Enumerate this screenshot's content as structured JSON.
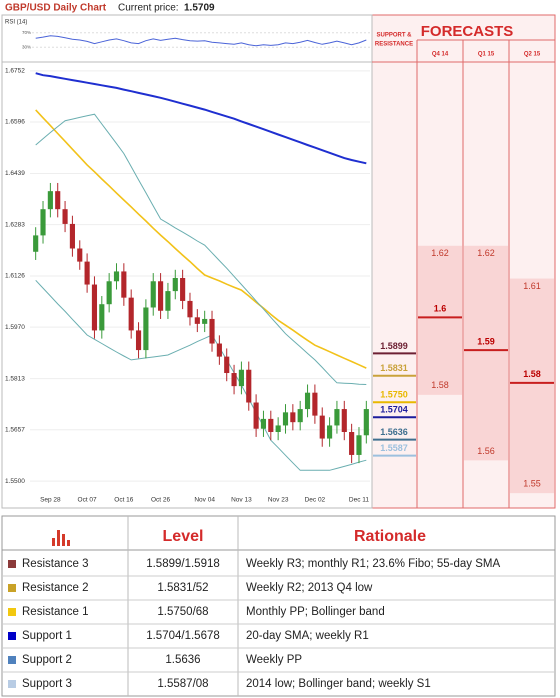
{
  "chart_data": {
    "type": "candlestick",
    "title": "GBP/USD Daily Chart",
    "price_label": "Current price:",
    "current_price": 1.5709,
    "categories": [
      null,
      null,
      "Sep 28",
      null,
      null,
      null,
      null,
      "Oct 07",
      null,
      null,
      null,
      null,
      "Oct 16",
      null,
      null,
      null,
      null,
      "Oct 26",
      null,
      null,
      null,
      null,
      null,
      "Nov 04",
      null,
      null,
      null,
      null,
      "Nov 13",
      null,
      null,
      null,
      null,
      "Nov 23",
      null,
      null,
      null,
      null,
      "Dec 02",
      null,
      null,
      null,
      null,
      null,
      "Dec 11",
      null
    ],
    "open": [
      1.62,
      1.625,
      1.633,
      1.6385,
      1.633,
      1.6285,
      1.621,
      1.617,
      1.61,
      1.596,
      1.604,
      1.611,
      1.614,
      1.606,
      1.596,
      1.59,
      1.603,
      1.611,
      1.602,
      1.608,
      1.612,
      1.605,
      1.6,
      1.598,
      1.5995,
      1.592,
      1.588,
      1.583,
      1.579,
      1.584,
      1.574,
      1.566,
      1.569,
      1.565,
      1.567,
      1.571,
      1.568,
      1.572,
      1.577,
      1.57,
      1.563,
      1.567,
      1.572,
      1.565,
      1.558,
      1.564
    ],
    "high": [
      1.6275,
      1.6355,
      1.641,
      1.641,
      1.6355,
      1.631,
      1.6235,
      1.6195,
      1.6125,
      1.6065,
      1.6135,
      1.6165,
      1.6165,
      1.6085,
      1.5985,
      1.6055,
      1.6135,
      1.6135,
      1.6105,
      1.6145,
      1.6145,
      1.6075,
      1.6025,
      1.602,
      1.602,
      1.5945,
      1.5905,
      1.5855,
      1.5865,
      1.5865,
      1.5765,
      1.5715,
      1.5715,
      1.5695,
      1.5735,
      1.5735,
      1.5745,
      1.5795,
      1.5795,
      1.5725,
      1.5695,
      1.5745,
      1.5745,
      1.5675,
      1.5665,
      1.5745
    ],
    "low": [
      1.6175,
      1.6225,
      1.6305,
      1.6305,
      1.626,
      1.6185,
      1.6145,
      1.6075,
      1.5935,
      1.5935,
      1.6015,
      1.6085,
      1.6035,
      1.5935,
      1.5875,
      1.5875,
      1.6005,
      1.5995,
      1.5995,
      1.6055,
      1.6025,
      1.5975,
      1.5955,
      1.5955,
      1.5895,
      1.5855,
      1.5805,
      1.5765,
      1.5765,
      1.5715,
      1.5635,
      1.5635,
      1.5625,
      1.5625,
      1.5645,
      1.5655,
      1.5655,
      1.5695,
      1.5675,
      1.5605,
      1.5605,
      1.5645,
      1.5625,
      1.5555,
      1.5555,
      1.5615
    ],
    "close": [
      1.625,
      1.633,
      1.6385,
      1.633,
      1.6285,
      1.621,
      1.617,
      1.61,
      1.596,
      1.604,
      1.611,
      1.614,
      1.606,
      1.596,
      1.59,
      1.603,
      1.611,
      1.602,
      1.608,
      1.612,
      1.605,
      1.6,
      1.598,
      1.5995,
      1.592,
      1.588,
      1.583,
      1.579,
      1.584,
      1.574,
      1.566,
      1.569,
      1.565,
      1.567,
      1.571,
      1.568,
      1.572,
      1.577,
      1.57,
      1.563,
      1.567,
      1.572,
      1.565,
      1.558,
      1.564,
      1.572
    ],
    "up_color": "#3a9a3a",
    "down_color": "#b3262b",
    "ylim": [
      1.5473,
      1.677
    ],
    "yticks": [
      1.6752,
      1.6596,
      1.6439,
      1.6283,
      1.6126,
      {
        "value": 1.597,
        "label": "1.5970"
      },
      1.5813,
      1.5657,
      {
        "value": 1.55,
        "label": "1.5500"
      }
    ],
    "grid": true,
    "series": [
      {
        "color": "#1f2fd0",
        "values": [
          1.6745,
          1.6739,
          1.6736,
          1.6732,
          1.6728,
          1.6724,
          1.672,
          1.6716,
          1.6712,
          1.6708,
          1.6704,
          1.67,
          1.6695,
          1.669,
          1.6685,
          1.668,
          1.6675,
          1.667,
          1.6664,
          1.6658,
          1.6652,
          1.6646,
          1.664,
          1.6634,
          1.6627,
          1.662,
          1.6613,
          1.6606,
          1.6598,
          1.659,
          1.6582,
          1.6574,
          1.6566,
          1.6558,
          1.655,
          1.6542,
          1.6534,
          1.6526,
          1.6518,
          1.651,
          1.6502,
          1.6494,
          1.6486,
          1.648,
          1.6475,
          1.647
        ]
      },
      {
        "color": "#f2c21a",
        "values": [
          1.6633,
          1.6609,
          1.6585,
          1.6561,
          1.6537,
          1.6513,
          1.6489,
          1.6465,
          1.6444,
          1.6422,
          1.6401,
          1.6379,
          1.6358,
          1.6337,
          1.6315,
          1.6294,
          1.6272,
          1.6251,
          1.6231,
          1.621,
          1.619,
          1.617,
          1.6149,
          1.6129,
          1.612,
          1.6111,
          1.6101,
          1.6092,
          1.6083,
          1.6065,
          1.6046,
          1.6028,
          1.6009,
          1.5991,
          1.5976,
          1.5961,
          1.5945,
          1.593,
          1.5915,
          1.5905,
          1.5895,
          1.5885,
          1.5875,
          1.5865,
          1.5855,
          1.5845
        ]
      },
      {
        "color": "#6aaeb0",
        "values": [
          1.6526,
          1.6545,
          1.6564,
          1.6582,
          1.66,
          1.6605,
          1.661,
          1.6615,
          1.662,
          1.659,
          1.656,
          1.653,
          1.65,
          1.646,
          1.642,
          1.638,
          1.634,
          1.63,
          1.6287,
          1.6273,
          1.626,
          1.6247,
          1.6233,
          1.622,
          1.6197,
          1.6173,
          1.615,
          1.6125,
          1.61,
          1.6075,
          1.605,
          1.6025,
          1.6,
          1.5975,
          1.595,
          1.593,
          1.591,
          1.589,
          1.587,
          1.5847,
          1.5823,
          1.58,
          1.5799,
          1.5798,
          1.5796,
          1.5795
        ]
      },
      {
        "color": "#6aaeb0",
        "values": [
          1.6113,
          1.6089,
          1.6065,
          1.6041,
          1.6018,
          1.5994,
          1.597,
          1.5946,
          1.5933,
          1.592,
          1.5907,
          1.5894,
          1.5882,
          1.587,
          1.5873,
          1.5876,
          1.5879,
          1.5882,
          1.5885,
          1.5895,
          1.5905,
          1.5915,
          1.5926,
          1.5936,
          1.5946,
          1.5908,
          1.587,
          1.5831,
          1.5793,
          1.5751,
          1.5709,
          1.5667,
          1.5625,
          1.5602,
          1.5579,
          1.5556,
          1.5533,
          1.5533,
          1.5533,
          1.5533,
          1.5533,
          1.5539,
          1.5545,
          1.5551,
          1.5558,
          1.5564
        ]
      }
    ],
    "rsi": {
      "title": "RSI (14)",
      "color": "#4a63d8",
      "ylim": [
        0,
        100
      ],
      "yticks": [
        {
          "value": 70,
          "label": "70%"
        },
        {
          "value": 30,
          "label": "30%"
        }
      ],
      "values": [
        55,
        58,
        62,
        60,
        56,
        52,
        50,
        46,
        40,
        45,
        50,
        53,
        48,
        42,
        40,
        48,
        53,
        49,
        52,
        55,
        51,
        48,
        47,
        48,
        44,
        42,
        40,
        38,
        42,
        37,
        34,
        37,
        35,
        37,
        42,
        40,
        44,
        49,
        43,
        38,
        42,
        47,
        42,
        37,
        42,
        50
      ]
    },
    "levels_title": [
      "SUPPORT &",
      "RESISTANCE"
    ],
    "levels": [
      {
        "value": 1.5899,
        "color": "#6d2033"
      },
      {
        "value": 1.5831,
        "color": "#c9a23a"
      },
      {
        "value": 1.575,
        "label": "1.5750",
        "color": "#e8b800"
      },
      {
        "value": 1.5704,
        "color": "#1c1c9c"
      },
      {
        "value": 1.5636,
        "color": "#3f6f8f"
      },
      {
        "value": 1.5587,
        "color": "#9cc0de"
      }
    ],
    "forecasts": {
      "title": "FORECASTS",
      "columns": [
        {
          "name": "Q4 14",
          "high": 1.62,
          "mid": 1.6,
          "low": 1.58
        },
        {
          "name": "Q1 15",
          "high": 1.62,
          "mid": 1.59,
          "low": 1.56
        },
        {
          "name": "Q2 15",
          "high": 1.61,
          "mid": 1.58,
          "low": 1.55
        }
      ]
    }
  },
  "table": {
    "headers": [
      "Level",
      "Rationale"
    ],
    "rows": [
      {
        "name": "Resistance 3",
        "color": "#8b3a3a",
        "level": "1.5899/1.5918",
        "rationale": "Weekly R3; monthly R1; 23.6% Fibo; 55-day SMA"
      },
      {
        "name": "Resistance 2",
        "color": "#c9a227",
        "level": "1.5831/52",
        "rationale": "Weekly R2; 2013 Q4 low"
      },
      {
        "name": "Resistance 1",
        "color": "#f2c80f",
        "level": "1.5750/68",
        "rationale": "Monthly PP; Bollinger band"
      },
      {
        "name": "Support 1",
        "color": "#0000c8",
        "level": "1.5704/1.5678",
        "rationale": "20-day SMA; weekly R1"
      },
      {
        "name": "Support 2",
        "color": "#4f81bd",
        "level": "1.5636",
        "rationale": "Weekly PP"
      },
      {
        "name": "Support 3",
        "color": "#b8cce4",
        "level": "1.5587/08",
        "rationale": "2014 low; Bollinger band; weekly S1"
      }
    ]
  }
}
